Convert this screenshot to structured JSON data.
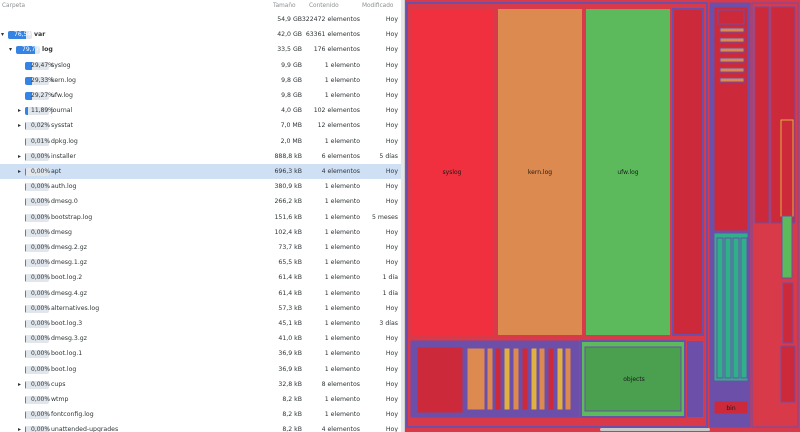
{
  "header": {
    "folder": "Carpeta",
    "size": "Tamaño",
    "content": "Contenido",
    "modified": "Modificado"
  },
  "rows": [
    {
      "level": 0,
      "expander": "none",
      "pct": "",
      "fill": 0,
      "name": "",
      "size": "54,9 GB",
      "count": "322472 elementos",
      "modified": "Hoy",
      "bold": false
    },
    {
      "level": 0,
      "expander": "open",
      "pct": "76,54%",
      "fill": 0.7654,
      "name": "var",
      "size": "42,0 GB",
      "count": "63361 elementos",
      "modified": "Hoy",
      "bold": true
    },
    {
      "level": 1,
      "expander": "open",
      "pct": "79,77%",
      "fill": 0.7977,
      "name": "log",
      "size": "33,5 GB",
      "count": "176 elementos",
      "modified": "Hoy",
      "bold": true
    },
    {
      "level": 2,
      "expander": "none",
      "pct": "29,47%",
      "fill": 0.2947,
      "name": "syslog",
      "size": "9,9 GB",
      "count": "1 elemento",
      "modified": "Hoy",
      "bold": false
    },
    {
      "level": 2,
      "expander": "none",
      "pct": "29,33%",
      "fill": 0.2933,
      "name": "kern.log",
      "size": "9,8 GB",
      "count": "1 elemento",
      "modified": "Hoy",
      "bold": false
    },
    {
      "level": 2,
      "expander": "none",
      "pct": "29,27%",
      "fill": 0.2927,
      "name": "ufw.log",
      "size": "9,8 GB",
      "count": "1 elemento",
      "modified": "Hoy",
      "bold": false
    },
    {
      "level": 2,
      "expander": "closed",
      "pct": "11,89%",
      "fill": 0.1189,
      "name": "journal",
      "size": "4,0 GB",
      "count": "102 elementos",
      "modified": "Hoy",
      "bold": false
    },
    {
      "level": 2,
      "expander": "closed",
      "pct": "0,02%",
      "fill": 0.0002,
      "name": "sysstat",
      "size": "7,0 MB",
      "count": "12 elementos",
      "modified": "Hoy",
      "bold": false
    },
    {
      "level": 2,
      "expander": "none",
      "pct": "0,01%",
      "fill": 0.0001,
      "name": "dpkg.log",
      "size": "2,0 MB",
      "count": "1 elemento",
      "modified": "Hoy",
      "bold": false
    },
    {
      "level": 2,
      "expander": "closed",
      "pct": "0,00%",
      "fill": 0,
      "name": "installer",
      "size": "888,8 kB",
      "count": "6 elementos",
      "modified": "5 días",
      "bold": false
    },
    {
      "level": 2,
      "expander": "closed",
      "pct": "0,00%",
      "fill": 0,
      "name": "apt",
      "size": "696,3 kB",
      "count": "4 elementos",
      "modified": "Hoy",
      "bold": false,
      "selected": true
    },
    {
      "level": 2,
      "expander": "none",
      "pct": "0,00%",
      "fill": 0,
      "name": "auth.log",
      "size": "380,9 kB",
      "count": "1 elemento",
      "modified": "Hoy",
      "bold": false
    },
    {
      "level": 2,
      "expander": "none",
      "pct": "0,00%",
      "fill": 0,
      "name": "dmesg.0",
      "size": "266,2 kB",
      "count": "1 elemento",
      "modified": "Hoy",
      "bold": false
    },
    {
      "level": 2,
      "expander": "none",
      "pct": "0,00%",
      "fill": 0,
      "name": "bootstrap.log",
      "size": "151,6 kB",
      "count": "1 elemento",
      "modified": "5 meses",
      "bold": false
    },
    {
      "level": 2,
      "expander": "none",
      "pct": "0,00%",
      "fill": 0,
      "name": "dmesg",
      "size": "102,4 kB",
      "count": "1 elemento",
      "modified": "Hoy",
      "bold": false
    },
    {
      "level": 2,
      "expander": "none",
      "pct": "0,00%",
      "fill": 0,
      "name": "dmesg.2.gz",
      "size": "73,7 kB",
      "count": "1 elemento",
      "modified": "Hoy",
      "bold": false
    },
    {
      "level": 2,
      "expander": "none",
      "pct": "0,00%",
      "fill": 0,
      "name": "dmesg.1.gz",
      "size": "65,5 kB",
      "count": "1 elemento",
      "modified": "Hoy",
      "bold": false
    },
    {
      "level": 2,
      "expander": "none",
      "pct": "0,00%",
      "fill": 0,
      "name": "boot.log.2",
      "size": "61,4 kB",
      "count": "1 elemento",
      "modified": "1 día",
      "bold": false
    },
    {
      "level": 2,
      "expander": "none",
      "pct": "0,00%",
      "fill": 0,
      "name": "dmesg.4.gz",
      "size": "61,4 kB",
      "count": "1 elemento",
      "modified": "1 día",
      "bold": false
    },
    {
      "level": 2,
      "expander": "none",
      "pct": "0,00%",
      "fill": 0,
      "name": "alternatives.log",
      "size": "57,3 kB",
      "count": "1 elemento",
      "modified": "Hoy",
      "bold": false
    },
    {
      "level": 2,
      "expander": "none",
      "pct": "0,00%",
      "fill": 0,
      "name": "boot.log.3",
      "size": "45,1 kB",
      "count": "1 elemento",
      "modified": "3 días",
      "bold": false
    },
    {
      "level": 2,
      "expander": "none",
      "pct": "0,00%",
      "fill": 0,
      "name": "dmesg.3.gz",
      "size": "41,0 kB",
      "count": "1 elemento",
      "modified": "Hoy",
      "bold": false
    },
    {
      "level": 2,
      "expander": "none",
      "pct": "0,00%",
      "fill": 0,
      "name": "boot.log.1",
      "size": "36,9 kB",
      "count": "1 elemento",
      "modified": "Hoy",
      "bold": false
    },
    {
      "level": 2,
      "expander": "none",
      "pct": "0,00%",
      "fill": 0,
      "name": "boot.log",
      "size": "36,9 kB",
      "count": "1 elemento",
      "modified": "Hoy",
      "bold": false
    },
    {
      "level": 2,
      "expander": "closed",
      "pct": "0,00%",
      "fill": 0,
      "name": "cups",
      "size": "32,8 kB",
      "count": "8 elementos",
      "modified": "Hoy",
      "bold": false
    },
    {
      "level": 2,
      "expander": "none",
      "pct": "0,00%",
      "fill": 0,
      "name": "wtmp",
      "size": "8,2 kB",
      "count": "1 elemento",
      "modified": "Hoy",
      "bold": false
    },
    {
      "level": 2,
      "expander": "none",
      "pct": "0,00%",
      "fill": 0,
      "name": "fontconfig.log",
      "size": "8,2 kB",
      "count": "1 elemento",
      "modified": "Hoy",
      "bold": false
    },
    {
      "level": 2,
      "expander": "closed",
      "pct": "0,00%",
      "fill": 0,
      "name": "unattended-upgrades",
      "size": "8,2 kB",
      "count": "4 elementos",
      "modified": "Hoy",
      "bold": false
    }
  ],
  "treemap": {
    "labels": {
      "syslog": "syslog",
      "kern": "kern.log",
      "ufw": "ufw.log",
      "objects": "objects",
      "bin": "bin"
    },
    "colors": {
      "bg": "#d83a4a",
      "red": "#f0303f",
      "orange": "#dd8a50",
      "green": "#5cba5c",
      "purple": "#6b4fa8",
      "teal": "#2fb08a",
      "darkgreen": "#4aa04e",
      "crimson": "#cc2a3a",
      "yellow": "#e0b040"
    }
  }
}
